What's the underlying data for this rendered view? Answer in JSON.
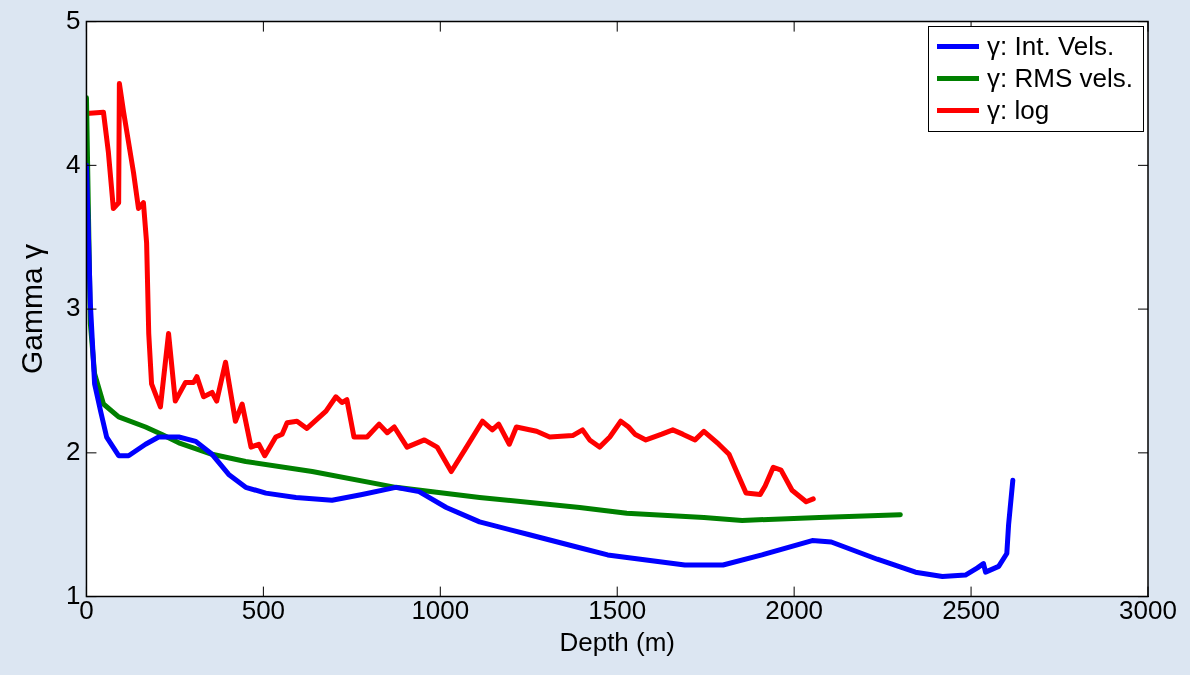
{
  "chart_data": {
    "type": "line",
    "xlabel": "Depth (m)",
    "ylabel": "Gamma γ",
    "xlim": [
      0,
      3000
    ],
    "xticks": [
      0,
      500,
      1000,
      1500,
      2000,
      2500,
      3000
    ],
    "ylim": [
      1,
      5
    ],
    "yticks": [
      1,
      2,
      3,
      4,
      5
    ],
    "grid": false,
    "legend": "top right",
    "marker": "none",
    "line_style": "solid",
    "series": [
      {
        "name": "γ: Int. Vels.",
        "color": "#0000ff",
        "x": [
          0,
          11,
          23,
          40,
          57,
          91,
          119,
          167,
          204,
          261,
          309,
          355,
          402,
          450,
          507,
          592,
          694,
          779,
          874,
          940,
          1017,
          1111,
          1252,
          1394,
          1473,
          1691,
          1799,
          1909,
          2051,
          2105,
          2235,
          2343,
          2419,
          2484,
          2518,
          2535,
          2541,
          2578,
          2601,
          2606,
          2618
        ],
        "values": [
          4.0,
          3.04,
          2.48,
          2.29,
          2.11,
          1.98,
          1.98,
          2.06,
          2.11,
          2.11,
          2.08,
          1.99,
          1.85,
          1.76,
          1.72,
          1.69,
          1.67,
          1.71,
          1.76,
          1.73,
          1.62,
          1.52,
          1.43,
          1.34,
          1.29,
          1.22,
          1.22,
          1.29,
          1.39,
          1.38,
          1.26,
          1.17,
          1.14,
          1.15,
          1.2,
          1.23,
          1.17,
          1.21,
          1.3,
          1.5,
          1.81
        ]
      },
      {
        "name": "γ: RMS vels.",
        "color": "#008000",
        "x": [
          0,
          11,
          23,
          48,
          91,
          167,
          212,
          261,
          355,
          450,
          638,
          874,
          1111,
          1394,
          1527,
          1745,
          1853,
          2071,
          2300
        ],
        "values": [
          4.47,
          2.9,
          2.55,
          2.34,
          2.25,
          2.18,
          2.13,
          2.07,
          1.99,
          1.94,
          1.87,
          1.76,
          1.69,
          1.62,
          1.58,
          1.55,
          1.53,
          1.55,
          1.57
        ]
      },
      {
        "name": "γ: log",
        "color": "#ff0000",
        "x": [
          0,
          48,
          62,
          76,
          91,
          93,
          105,
          133,
          147,
          161,
          170,
          176,
          184,
          209,
          232,
          251,
          280,
          303,
          312,
          331,
          355,
          368,
          393,
          421,
          440,
          465,
          487,
          504,
          535,
          553,
          567,
          595,
          623,
          677,
          705,
          722,
          736,
          756,
          793,
          827,
          850,
          870,
          906,
          955,
          991,
          1031,
          1074,
          1119,
          1147,
          1165,
          1195,
          1215,
          1272,
          1309,
          1374,
          1402,
          1422,
          1450,
          1479,
          1510,
          1532,
          1550,
          1581,
          1626,
          1657,
          1685,
          1720,
          1745,
          1787,
          1816,
          1841,
          1864,
          1904,
          1918,
          1941,
          1963,
          1994,
          2034,
          2054
        ],
        "values": [
          4.36,
          4.37,
          4.09,
          3.7,
          3.74,
          4.57,
          4.37,
          3.95,
          3.7,
          3.74,
          3.46,
          2.83,
          2.48,
          2.32,
          2.83,
          2.36,
          2.49,
          2.49,
          2.53,
          2.39,
          2.42,
          2.36,
          2.63,
          2.22,
          2.34,
          2.04,
          2.06,
          1.98,
          2.11,
          2.13,
          2.21,
          2.22,
          2.17,
          2.29,
          2.39,
          2.35,
          2.37,
          2.11,
          2.11,
          2.2,
          2.14,
          2.18,
          2.04,
          2.09,
          2.04,
          1.87,
          2.04,
          2.22,
          2.16,
          2.2,
          2.06,
          2.18,
          2.15,
          2.11,
          2.12,
          2.16,
          2.09,
          2.04,
          2.11,
          2.22,
          2.18,
          2.13,
          2.09,
          2.13,
          2.16,
          2.13,
          2.09,
          2.15,
          2.06,
          1.99,
          1.85,
          1.72,
          1.71,
          1.77,
          1.9,
          1.88,
          1.74,
          1.66,
          1.68
        ]
      }
    ]
  }
}
